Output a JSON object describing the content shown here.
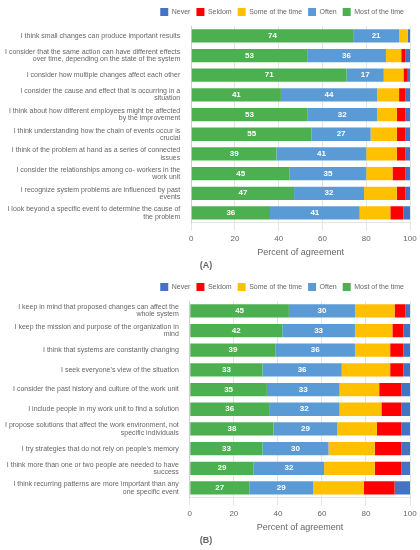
{
  "chart_data": [
    {
      "type": "bar",
      "orientation": "horizontal",
      "stacked": true,
      "subtitle": "(A)",
      "xlabel": "Percent of agreement",
      "categories": [
        "I think small changes can produce important results",
        "I consider that the same action can have different effects\nover time, depending on the state of the system",
        "I consider how multiple changes affect each other",
        "I consider the cause and effect that is occurring in a\nsituation",
        "I think about how different employees might be affected\nby the improvement",
        "I think understanding how the chain of events occur is\ncrucial",
        "I think of the problem at hand as a series of connected\nissues",
        "I consider the relationships among co- workers in the\nwork unit",
        "I recognize system problems are influenced by past\nevents",
        "I look beyond a specific event to determine the cause of\nthe problem"
      ],
      "series": [
        {
          "name": "Most of the time",
          "color": "#4CAF50",
          "data_labels": true,
          "values": [
            74,
            53,
            71,
            41,
            53,
            55,
            39,
            45,
            47,
            36
          ]
        },
        {
          "name": "Often",
          "color": "#5B9BD5",
          "data_labels": true,
          "values": [
            21,
            36,
            17,
            44,
            32,
            27,
            41,
            35,
            32,
            41
          ]
        },
        {
          "name": "Some of the time",
          "color": "#FFC000",
          "values": [
            4,
            7,
            9,
            10,
            9,
            12,
            14,
            12,
            15,
            14
          ]
        },
        {
          "name": "Seldom",
          "color": "#FF0000",
          "values": [
            0,
            2,
            2,
            3,
            4,
            4,
            4,
            6,
            4,
            6
          ]
        },
        {
          "name": "Never",
          "color": "#4472C4",
          "values": [
            1,
            2,
            1,
            2,
            2,
            2,
            2,
            2,
            2,
            3
          ]
        }
      ],
      "xlim": [
        0,
        100
      ],
      "xticks": [
        0,
        20,
        40,
        60,
        80,
        100
      ],
      "grid": true,
      "legend": "top"
    },
    {
      "type": "bar",
      "orientation": "horizontal",
      "stacked": true,
      "subtitle": "(B)",
      "xlabel": "Percent of agreement",
      "categories": [
        "I keep in mind that proposed changes can affect the\nwhole system",
        "I keep the mission and purpose of the organization in\nmind",
        "I think that systems are constantly changing",
        "I seek everyone’s view of the situation",
        "I consider the past history and culture of the work unit",
        "I include people in my work unit to find a solution",
        "I propose solutions that affect the work environment, not\nspecific individuals",
        "I try strategies that do not rely on people’s memory",
        "I think more than one or two people are needed to have\nsuccess",
        "I think recurring patterns are more important than any\none specific event"
      ],
      "series": [
        {
          "name": "Most of the time",
          "color": "#4CAF50",
          "data_labels": true,
          "values": [
            45,
            42,
            39,
            33,
            35,
            36,
            38,
            33,
            29,
            27
          ]
        },
        {
          "name": "Often",
          "color": "#5B9BD5",
          "data_labels": true,
          "values": [
            30,
            33,
            36,
            36,
            33,
            32,
            29,
            30,
            32,
            29
          ]
        },
        {
          "name": "Some of the time",
          "color": "#FFC000",
          "values": [
            18,
            17,
            16,
            22,
            18,
            19,
            18,
            21,
            23,
            23
          ]
        },
        {
          "name": "Seldom",
          "color": "#FF0000",
          "values": [
            5,
            5,
            6,
            6,
            10,
            9,
            11,
            12,
            12,
            14
          ]
        },
        {
          "name": "Never",
          "color": "#4472C4",
          "values": [
            2,
            3,
            3,
            3,
            4,
            4,
            4,
            4,
            4,
            7
          ]
        }
      ],
      "xlim": [
        0,
        100
      ],
      "xticks": [
        0,
        20,
        40,
        60,
        80,
        100
      ],
      "grid": true,
      "legend": "top"
    }
  ]
}
